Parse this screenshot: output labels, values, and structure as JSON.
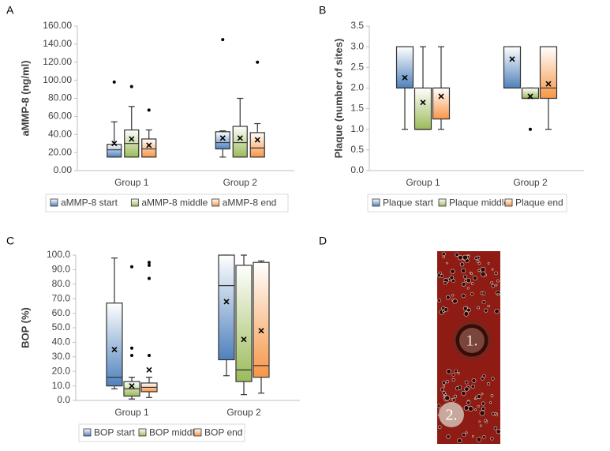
{
  "chart_data": [
    {
      "type": "box",
      "panel": "A",
      "ylabel": "aMMP-8 (ng/ml)",
      "categories": [
        "Group 1",
        "Group 2"
      ],
      "ylim": [
        0,
        160
      ],
      "yticks": [
        {
          "value": 0,
          "label": "0.00"
        },
        {
          "value": 20,
          "label": "20.00"
        },
        {
          "value": 40,
          "label": "40.00"
        },
        {
          "value": 60,
          "label": "60.00"
        },
        {
          "value": 80,
          "label": "80.00"
        },
        {
          "value": 100,
          "label": "100.00"
        },
        {
          "value": 120,
          "label": "120.00"
        },
        {
          "value": 140,
          "label": "140.00"
        },
        {
          "value": 160,
          "label": "160.00"
        }
      ],
      "series": [
        {
          "name": "aMMP-8 start",
          "color": "#4f81bd",
          "min": [
            15,
            15
          ],
          "q1": [
            15,
            24
          ],
          "median": [
            23,
            31
          ],
          "q3": [
            29,
            43
          ],
          "max": [
            54,
            44
          ],
          "mean": [
            30,
            36
          ],
          "outliers": [
            [
              98
            ],
            [
              145
            ]
          ]
        },
        {
          "name": "aMMP-8 middle",
          "color": "#9bbb59",
          "min": [
            15,
            15
          ],
          "q1": [
            15,
            15
          ],
          "median": [
            30,
            31
          ],
          "q3": [
            45,
            49
          ],
          "max": [
            71,
            80
          ],
          "mean": [
            35,
            36
          ],
          "outliers": [
            [
              93
            ],
            []
          ]
        },
        {
          "name": "aMMP-8 end",
          "color": "#f79646",
          "min": [
            15,
            15
          ],
          "q1": [
            15,
            15
          ],
          "median": [
            24,
            25
          ],
          "q3": [
            35,
            42
          ],
          "max": [
            45,
            52
          ],
          "mean": [
            28,
            34
          ],
          "outliers": [
            [
              67
            ],
            [
              120
            ]
          ]
        }
      ]
    },
    {
      "type": "box",
      "panel": "B",
      "ylabel": "Plaque (number of sites)",
      "categories": [
        "Group 1",
        "Group 2"
      ],
      "ylim": [
        0,
        3.5
      ],
      "yticks": [
        {
          "value": 0,
          "label": "0.0"
        },
        {
          "value": 0.5,
          "label": "0.5"
        },
        {
          "value": 1,
          "label": "1.0"
        },
        {
          "value": 1.5,
          "label": "1.5"
        },
        {
          "value": 2,
          "label": "2.0"
        },
        {
          "value": 2.5,
          "label": "2.5"
        },
        {
          "value": 3,
          "label": "3.0"
        },
        {
          "value": 3.5,
          "label": "3.5"
        }
      ],
      "series": [
        {
          "name": "Plaque start",
          "color": "#4f81bd",
          "min": [
            1,
            2
          ],
          "q1": [
            2,
            2
          ],
          "median": [
            2,
            2
          ],
          "q3": [
            3,
            3
          ],
          "max": [
            3,
            3
          ],
          "mean": [
            2.25,
            2.7
          ],
          "outliers": [
            [],
            []
          ]
        },
        {
          "name": "Plaque middle",
          "color": "#9bbb59",
          "min": [
            1,
            1.75
          ],
          "q1": [
            1,
            1.75
          ],
          "median": [
            1,
            1.75
          ],
          "q3": [
            2,
            2
          ],
          "max": [
            3,
            2
          ],
          "mean": [
            1.65,
            1.8
          ],
          "outliers": [
            [],
            [
              1
            ]
          ]
        },
        {
          "name": "Plaque end",
          "color": "#f79646",
          "min": [
            1,
            1
          ],
          "q1": [
            1.25,
            1.75
          ],
          "median": [
            2,
            2
          ],
          "q3": [
            2,
            3
          ],
          "max": [
            3,
            3
          ],
          "mean": [
            1.8,
            2.1
          ],
          "outliers": [
            [],
            []
          ]
        }
      ]
    },
    {
      "type": "box",
      "panel": "C",
      "ylabel": "BOP (%)",
      "categories": [
        "Group 1",
        "Group 2"
      ],
      "ylim": [
        0,
        100
      ],
      "yticks": [
        {
          "value": 0,
          "label": "0.0"
        },
        {
          "value": 10,
          "label": "10.0"
        },
        {
          "value": 20,
          "label": "20.0"
        },
        {
          "value": 30,
          "label": "30.0"
        },
        {
          "value": 40,
          "label": "40.0"
        },
        {
          "value": 50,
          "label": "50.0"
        },
        {
          "value": 60,
          "label": "60.0"
        },
        {
          "value": 70,
          "label": "70.0"
        },
        {
          "value": 80,
          "label": "80.0"
        },
        {
          "value": 90,
          "label": "90.0"
        },
        {
          "value": 100,
          "label": "100.0"
        }
      ],
      "series": [
        {
          "name": "BOP start",
          "color": "#4f81bd",
          "min": [
            8,
            17
          ],
          "q1": [
            10,
            28
          ],
          "median": [
            16,
            79
          ],
          "q3": [
            67,
            100
          ],
          "max": [
            98,
            100
          ],
          "mean": [
            35,
            68
          ],
          "outliers": [
            [],
            []
          ]
        },
        {
          "name": "BOP middle",
          "color": "#9bbb59",
          "min": [
            1,
            4
          ],
          "q1": [
            3,
            13
          ],
          "median": [
            8,
            21
          ],
          "q3": [
            13,
            93
          ],
          "max": [
            16,
            100
          ],
          "mean": [
            10,
            42
          ],
          "outliers": [
            [
              92,
              36,
              31
            ],
            []
          ]
        },
        {
          "name": "BOP end",
          "color": "#f79646",
          "min": [
            2,
            5
          ],
          "q1": [
            6,
            16
          ],
          "median": [
            9,
            24
          ],
          "q3": [
            12,
            95
          ],
          "max": [
            16,
            96
          ],
          "mean": [
            21,
            48
          ],
          "outliers": [
            [
              95,
              93,
              84,
              31
            ],
            []
          ]
        }
      ]
    }
  ],
  "panel_d": {
    "label": "D",
    "markers": [
      "1.",
      "2."
    ]
  }
}
